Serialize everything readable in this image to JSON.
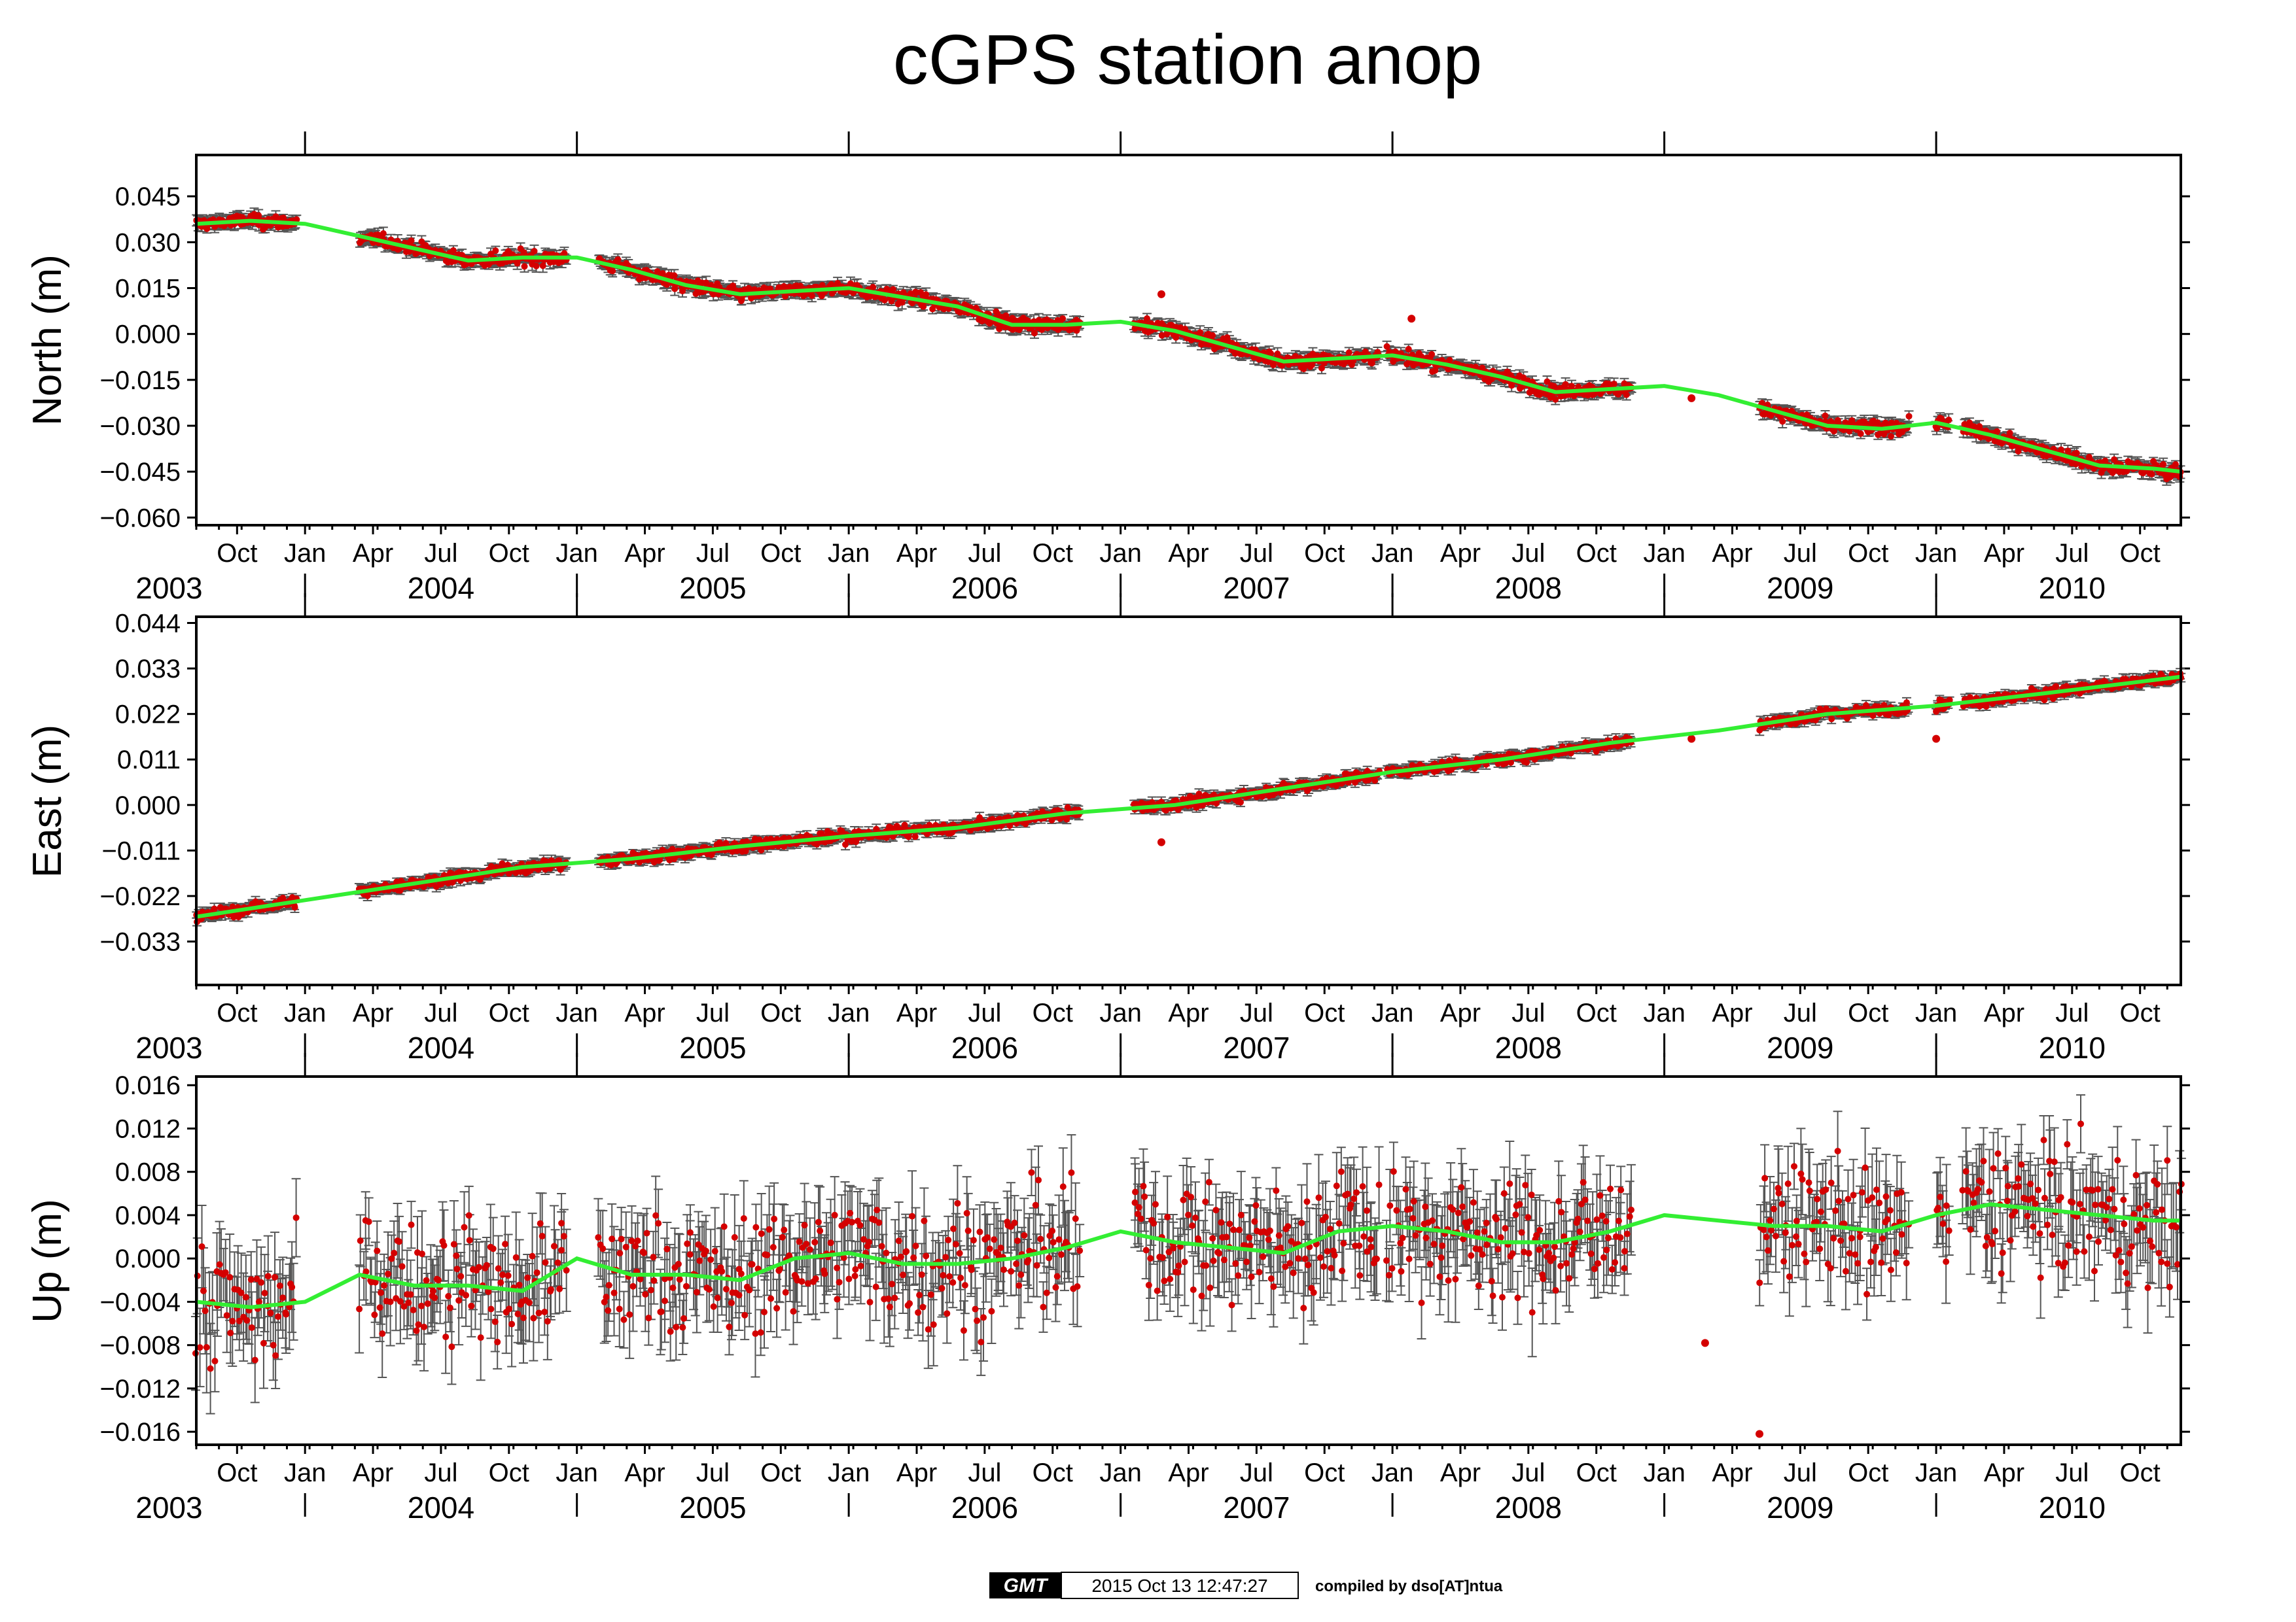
{
  "title": "cGPS station anop",
  "colors": {
    "points": "#d40000",
    "trend": "#33ee33",
    "errorbars": "#555555",
    "frame": "#000000"
  },
  "month_labels": [
    {
      "t": 2003.75,
      "label": "Oct"
    },
    {
      "t": 2004.0,
      "label": "Jan"
    },
    {
      "t": 2004.25,
      "label": "Apr"
    },
    {
      "t": 2004.5,
      "label": "Jul"
    },
    {
      "t": 2004.75,
      "label": "Oct"
    },
    {
      "t": 2005.0,
      "label": "Jan"
    },
    {
      "t": 2005.25,
      "label": "Apr"
    },
    {
      "t": 2005.5,
      "label": "Jul"
    },
    {
      "t": 2005.75,
      "label": "Oct"
    },
    {
      "t": 2006.0,
      "label": "Jan"
    },
    {
      "t": 2006.25,
      "label": "Apr"
    },
    {
      "t": 2006.5,
      "label": "Jul"
    },
    {
      "t": 2006.75,
      "label": "Oct"
    },
    {
      "t": 2007.0,
      "label": "Jan"
    },
    {
      "t": 2007.25,
      "label": "Apr"
    },
    {
      "t": 2007.5,
      "label": "Jul"
    },
    {
      "t": 2007.75,
      "label": "Oct"
    },
    {
      "t": 2008.0,
      "label": "Jan"
    },
    {
      "t": 2008.25,
      "label": "Apr"
    },
    {
      "t": 2008.5,
      "label": "Jul"
    },
    {
      "t": 2008.75,
      "label": "Oct"
    },
    {
      "t": 2009.0,
      "label": "Jan"
    },
    {
      "t": 2009.25,
      "label": "Apr"
    },
    {
      "t": 2009.5,
      "label": "Jul"
    },
    {
      "t": 2009.75,
      "label": "Oct"
    },
    {
      "t": 2010.0,
      "label": "Jan"
    },
    {
      "t": 2010.25,
      "label": "Apr"
    },
    {
      "t": 2010.5,
      "label": "Jul"
    },
    {
      "t": 2010.75,
      "label": "Oct"
    }
  ],
  "year_labels": [
    {
      "t": 2003.5,
      "label": "2003"
    },
    {
      "t": 2004.5,
      "label": "2004"
    },
    {
      "t": 2005.5,
      "label": "2005"
    },
    {
      "t": 2006.5,
      "label": "2006"
    },
    {
      "t": 2007.5,
      "label": "2007"
    },
    {
      "t": 2008.5,
      "label": "2008"
    },
    {
      "t": 2009.5,
      "label": "2009"
    },
    {
      "t": 2010.5,
      "label": "2010"
    }
  ],
  "chart_data": [
    {
      "type": "scatter",
      "ylabel": "North (m)",
      "xlim": [
        2003.6,
        2010.9
      ],
      "ylim": [
        -0.0625,
        0.0585
      ],
      "yticks": [
        0.045,
        0.03,
        0.015,
        0.0,
        -0.015,
        -0.03,
        -0.045,
        -0.06
      ],
      "ytick_labels": [
        "0.045",
        "0.030",
        "0.015",
        "0.000",
        "−0.015",
        "−0.030",
        "−0.045",
        "−0.060"
      ],
      "trend": {
        "x": [
          2003.6,
          2003.8,
          2004.0,
          2004.2,
          2004.4,
          2004.6,
          2004.8,
          2005.0,
          2005.2,
          2005.4,
          2005.6,
          2005.8,
          2006.0,
          2006.2,
          2006.4,
          2006.6,
          2006.8,
          2007.0,
          2007.2,
          2007.4,
          2007.6,
          2007.8,
          2008.0,
          2008.2,
          2008.4,
          2008.6,
          2008.8,
          2009.0,
          2009.2,
          2009.4,
          2009.6,
          2009.8,
          2010.0,
          2010.2,
          2010.4,
          2010.6,
          2010.8,
          2010.9
        ],
        "y": [
          0.036,
          0.037,
          0.036,
          0.032,
          0.028,
          0.024,
          0.025,
          0.025,
          0.021,
          0.016,
          0.013,
          0.014,
          0.015,
          0.012,
          0.009,
          0.003,
          0.003,
          0.004,
          0.001,
          -0.004,
          -0.009,
          -0.008,
          -0.007,
          -0.01,
          -0.014,
          -0.019,
          -0.018,
          -0.017,
          -0.02,
          -0.025,
          -0.03,
          -0.031,
          -0.029,
          -0.033,
          -0.038,
          -0.043,
          -0.044,
          -0.045
        ]
      },
      "data_spans": [
        [
          2003.6,
          2003.97
        ],
        [
          2004.2,
          2004.96
        ],
        [
          2005.08,
          2006.85
        ],
        [
          2007.05,
          2007.95
        ],
        [
          2007.98,
          2008.23
        ],
        [
          2008.23,
          2008.88
        ],
        [
          2009.35,
          2009.9
        ],
        [
          2010.0,
          2010.05
        ],
        [
          2010.1,
          2010.9
        ]
      ],
      "isolated_points": [
        {
          "x": 2007.15,
          "y": 0.013
        },
        {
          "x": 2008.07,
          "y": 0.005
        },
        {
          "x": 2009.1,
          "y": -0.021
        }
      ],
      "noise": 0.0022,
      "err": 0.0018
    },
    {
      "type": "scatter",
      "ylabel": "East (m)",
      "xlim": [
        2003.6,
        2010.9
      ],
      "ylim": [
        -0.0435,
        0.0455
      ],
      "yticks": [
        0.044,
        0.033,
        0.022,
        0.011,
        0.0,
        -0.011,
        -0.022,
        -0.033
      ],
      "ytick_labels": [
        "0.044",
        "0.033",
        "0.022",
        "0.011",
        "0.000",
        "−0.011",
        "−0.022",
        "−0.033"
      ],
      "trend": {
        "x": [
          2003.6,
          2004.0,
          2004.4,
          2004.8,
          2005.2,
          2005.6,
          2006.0,
          2006.4,
          2006.8,
          2007.2,
          2007.6,
          2008.0,
          2008.4,
          2008.8,
          2009.2,
          2009.6,
          2010.0,
          2010.4,
          2010.9
        ],
        "y": [
          -0.027,
          -0.023,
          -0.019,
          -0.015,
          -0.013,
          -0.01,
          -0.0075,
          -0.0055,
          -0.002,
          0.0,
          0.004,
          0.008,
          0.011,
          0.015,
          0.018,
          0.022,
          0.024,
          0.027,
          0.031
        ]
      },
      "data_spans": [
        [
          2003.6,
          2003.97
        ],
        [
          2004.2,
          2004.96
        ],
        [
          2005.08,
          2006.85
        ],
        [
          2007.05,
          2007.95
        ],
        [
          2007.98,
          2008.23
        ],
        [
          2008.23,
          2008.88
        ],
        [
          2009.35,
          2009.9
        ],
        [
          2010.0,
          2010.05
        ],
        [
          2010.1,
          2010.9
        ]
      ],
      "isolated_points": [
        {
          "x": 2007.15,
          "y": -0.009
        },
        {
          "x": 2009.1,
          "y": 0.016
        },
        {
          "x": 2010.0,
          "y": 0.016
        }
      ],
      "noise": 0.0013,
      "err": 0.0011
    },
    {
      "type": "scatter",
      "ylabel": "Up (m)",
      "xlim": [
        2003.6,
        2010.9
      ],
      "ylim": [
        -0.0172,
        0.0168
      ],
      "yticks": [
        0.016,
        0.012,
        0.008,
        0.004,
        0.0,
        -0.004,
        -0.008,
        -0.012,
        -0.016
      ],
      "ytick_labels": [
        "0.016",
        "0.012",
        "0.008",
        "0.004",
        "0.000",
        "−0.004",
        "−0.008",
        "−0.012",
        "−0.016"
      ],
      "trend": {
        "x": [
          2003.6,
          2003.8,
          2004.0,
          2004.2,
          2004.4,
          2004.6,
          2004.8,
          2005.0,
          2005.2,
          2005.4,
          2005.6,
          2005.8,
          2006.0,
          2006.2,
          2006.4,
          2006.6,
          2006.8,
          2007.0,
          2007.2,
          2007.4,
          2007.6,
          2007.8,
          2008.0,
          2008.2,
          2008.4,
          2008.6,
          2008.8,
          2009.0,
          2009.2,
          2009.4,
          2009.6,
          2009.8,
          2010.0,
          2010.2,
          2010.4,
          2010.6,
          2010.8,
          2010.9
        ],
        "y": [
          -0.004,
          -0.0045,
          -0.004,
          -0.0015,
          -0.0025,
          -0.0025,
          -0.003,
          0.0,
          -0.0015,
          -0.0015,
          -0.002,
          0.0,
          0.0005,
          -0.0005,
          -0.0005,
          0.0,
          0.001,
          0.0025,
          0.0015,
          0.001,
          0.0005,
          0.0025,
          0.003,
          0.0025,
          0.0015,
          0.0015,
          0.0025,
          0.004,
          0.0035,
          0.003,
          0.003,
          0.0025,
          0.004,
          0.005,
          0.0045,
          0.004,
          0.0035,
          0.0035
        ]
      },
      "data_spans": [
        [
          2003.6,
          2003.97
        ],
        [
          2004.2,
          2004.96
        ],
        [
          2005.08,
          2006.85
        ],
        [
          2007.05,
          2007.95
        ],
        [
          2007.98,
          2008.23
        ],
        [
          2008.23,
          2008.88
        ],
        [
          2009.35,
          2009.9
        ],
        [
          2010.0,
          2010.05
        ],
        [
          2010.1,
          2010.9
        ]
      ],
      "isolated_points": [
        {
          "x": 2009.15,
          "y": -0.0078
        },
        {
          "x": 2009.35,
          "y": -0.0162
        }
      ],
      "noise": 0.0055,
      "err": 0.0035
    }
  ],
  "footer": {
    "gmt_logo": "GMT",
    "timestamp": "2015 Oct 13 12:47:27",
    "credit": "compiled by dso[AT]ntua"
  }
}
